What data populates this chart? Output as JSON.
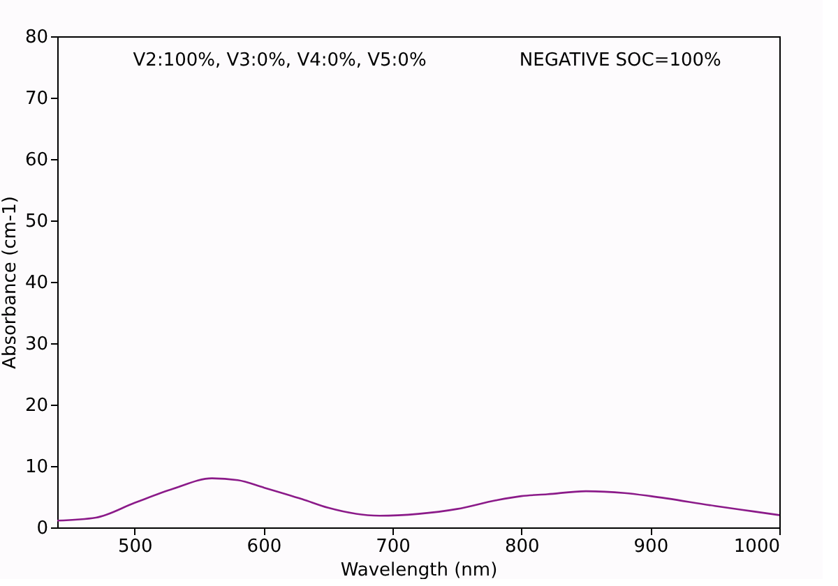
{
  "chart_data": {
    "type": "line",
    "xlabel": "Wavelength (nm)",
    "ylabel": "Absorbance (cm-1)",
    "annotations": [
      "V2:100%, V3:0%, V4:0%, V5:0%",
      "NEGATIVE SOC=100%"
    ],
    "x": [
      440,
      470,
      500,
      530,
      560,
      580,
      600,
      630,
      650,
      690,
      720,
      750,
      780,
      800,
      820,
      850,
      880,
      900,
      950,
      980,
      1000
    ],
    "series": [
      {
        "color": "#8b1a89",
        "values": [
          1.1,
          1.6,
          4.0,
          6.3,
          8.0,
          7.7,
          6.5,
          4.6,
          3.2,
          1.9,
          2.2,
          3.0,
          4.4,
          5.1,
          5.4,
          5.9,
          5.6,
          5.1,
          3.5,
          2.6,
          2.0
        ]
      }
    ],
    "xlim": [
      440,
      1000
    ],
    "xticks": [
      500,
      600,
      700,
      800,
      900,
      1000
    ],
    "ylim": [
      0,
      80
    ],
    "yticks": [
      0,
      10,
      20,
      30,
      40,
      50,
      60,
      70,
      80
    ],
    "grid": false,
    "legend": false,
    "marker": "none",
    "line_style": "solid"
  }
}
